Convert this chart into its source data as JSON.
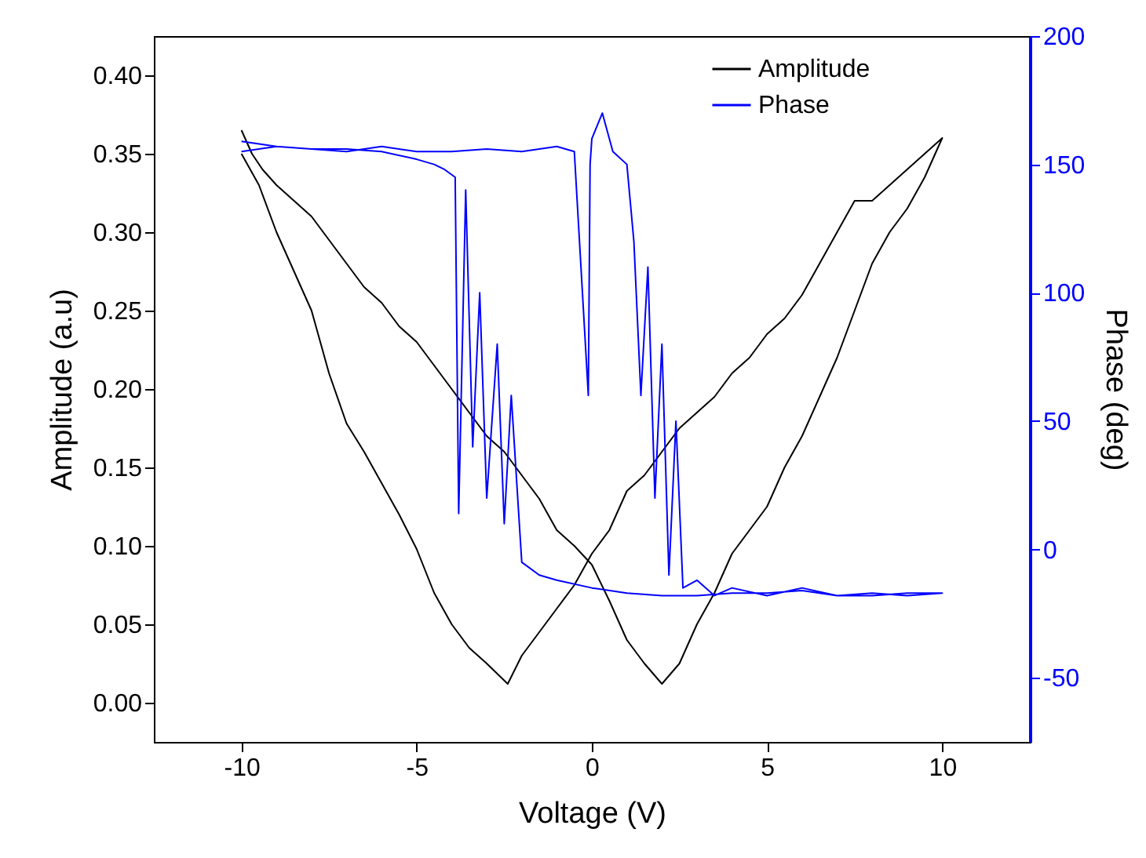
{
  "chart_data": {
    "type": "line",
    "xlabel": "Voltage (V)",
    "ylabel": "Amplitude (a.u)",
    "y2label": "Phase (deg)",
    "xlim": [
      -12.5,
      12.5
    ],
    "xticks": [
      -10,
      -5,
      0,
      5,
      10
    ],
    "ylim": [
      -0.025,
      0.425
    ],
    "yticks": [
      {
        "value": 0,
        "label": "0.00"
      },
      {
        "value": 0.05,
        "label": "0.05"
      },
      {
        "value": 0.1,
        "label": "0.10"
      },
      {
        "value": 0.15,
        "label": "0.15"
      },
      {
        "value": 0.2,
        "label": "0.20"
      },
      {
        "value": 0.25,
        "label": "0.25"
      },
      {
        "value": 0.3,
        "label": "0.30"
      },
      {
        "value": 0.35,
        "label": "0.35"
      },
      {
        "value": 0.4,
        "label": "0.40"
      }
    ],
    "y2lim": [
      -75,
      200
    ],
    "y2ticks": [
      -50,
      0,
      50,
      100,
      150,
      200
    ],
    "legend": "top right",
    "grid": false,
    "series": [
      {
        "name": "Amplitude",
        "color": "#000000",
        "x": [
          -10,
          -9.7,
          -9.4,
          -9,
          -8.5,
          -8,
          -7.5,
          -7,
          -6.5,
          -6,
          -5.5,
          -5,
          -4.5,
          -4,
          -3.5,
          -3,
          -2.5,
          -2,
          -1.5,
          -1,
          -0.5,
          0,
          0.5,
          1,
          1.5,
          2,
          2.5,
          3,
          3.5,
          4,
          4.5,
          5,
          5.5,
          6,
          6.5,
          7,
          7.5,
          8,
          8.5,
          9,
          9.5,
          10,
          9.5,
          9,
          8.5,
          8,
          7.5,
          7,
          6.5,
          6,
          5.5,
          5,
          4.5,
          4,
          3.5,
          3,
          2.5,
          2,
          1.5,
          1,
          0.5,
          0,
          -0.5,
          -1,
          -1.5,
          -2,
          -2.4,
          -3,
          -3.5,
          -4,
          -4.5,
          -5,
          -5.5,
          -6,
          -6.5,
          -7,
          -7.5,
          -8,
          -8.5,
          -9,
          -9.5,
          -10
        ],
        "values": [
          0.365,
          0.35,
          0.34,
          0.33,
          0.32,
          0.31,
          0.295,
          0.28,
          0.265,
          0.255,
          0.24,
          0.23,
          0.215,
          0.2,
          0.185,
          0.17,
          0.16,
          0.145,
          0.13,
          0.11,
          0.1,
          0.088,
          0.065,
          0.04,
          0.025,
          0.012,
          0.025,
          0.05,
          0.07,
          0.095,
          0.11,
          0.125,
          0.15,
          0.17,
          0.195,
          0.22,
          0.25,
          0.28,
          0.3,
          0.315,
          0.335,
          0.36,
          0.35,
          0.34,
          0.33,
          0.32,
          0.32,
          0.3,
          0.28,
          0.26,
          0.245,
          0.235,
          0.22,
          0.21,
          0.195,
          0.185,
          0.175,
          0.16,
          0.145,
          0.135,
          0.11,
          0.095,
          0.075,
          0.06,
          0.045,
          0.03,
          0.012,
          0.025,
          0.035,
          0.05,
          0.07,
          0.098,
          0.12,
          0.14,
          0.16,
          0.178,
          0.21,
          0.25,
          0.275,
          0.3,
          0.33,
          0.35
        ]
      },
      {
        "name": "Phase",
        "color": "#0000ff",
        "axis": "y2",
        "x": [
          -10,
          -9,
          -8,
          -7,
          -6,
          -5,
          -4,
          -3,
          -2,
          -1,
          -0.5,
          -0.1,
          -0.05,
          0,
          0.3,
          0.6,
          1,
          1.2,
          1.4,
          1.6,
          1.8,
          2,
          2.2,
          2.4,
          2.6,
          3,
          3.5,
          4,
          5,
          6,
          7,
          8,
          9,
          10,
          9,
          8,
          7,
          6,
          5,
          4,
          3,
          2,
          1,
          0,
          -1,
          -1.5,
          -2,
          -2.3,
          -2.5,
          -2.7,
          -3,
          -3.2,
          -3.4,
          -3.6,
          -3.8,
          -3.9,
          -4.2,
          -4.5,
          -5,
          -6,
          -7,
          -8,
          -9,
          -10
        ],
        "values": [
          155,
          157,
          156,
          155,
          157,
          155,
          155,
          156,
          155,
          157,
          155,
          60,
          150,
          160,
          170,
          155,
          150,
          120,
          60,
          110,
          20,
          80,
          -10,
          50,
          -15,
          -12,
          -18,
          -15,
          -18,
          -15,
          -18,
          -18,
          -17,
          -17,
          -18,
          -17,
          -18,
          -16,
          -17,
          -17,
          -18,
          -18,
          -17,
          -15,
          -12,
          -10,
          -5,
          60,
          10,
          80,
          20,
          100,
          40,
          140,
          14,
          145,
          148,
          150,
          152,
          155,
          156,
          156,
          157,
          159
        ]
      }
    ]
  }
}
